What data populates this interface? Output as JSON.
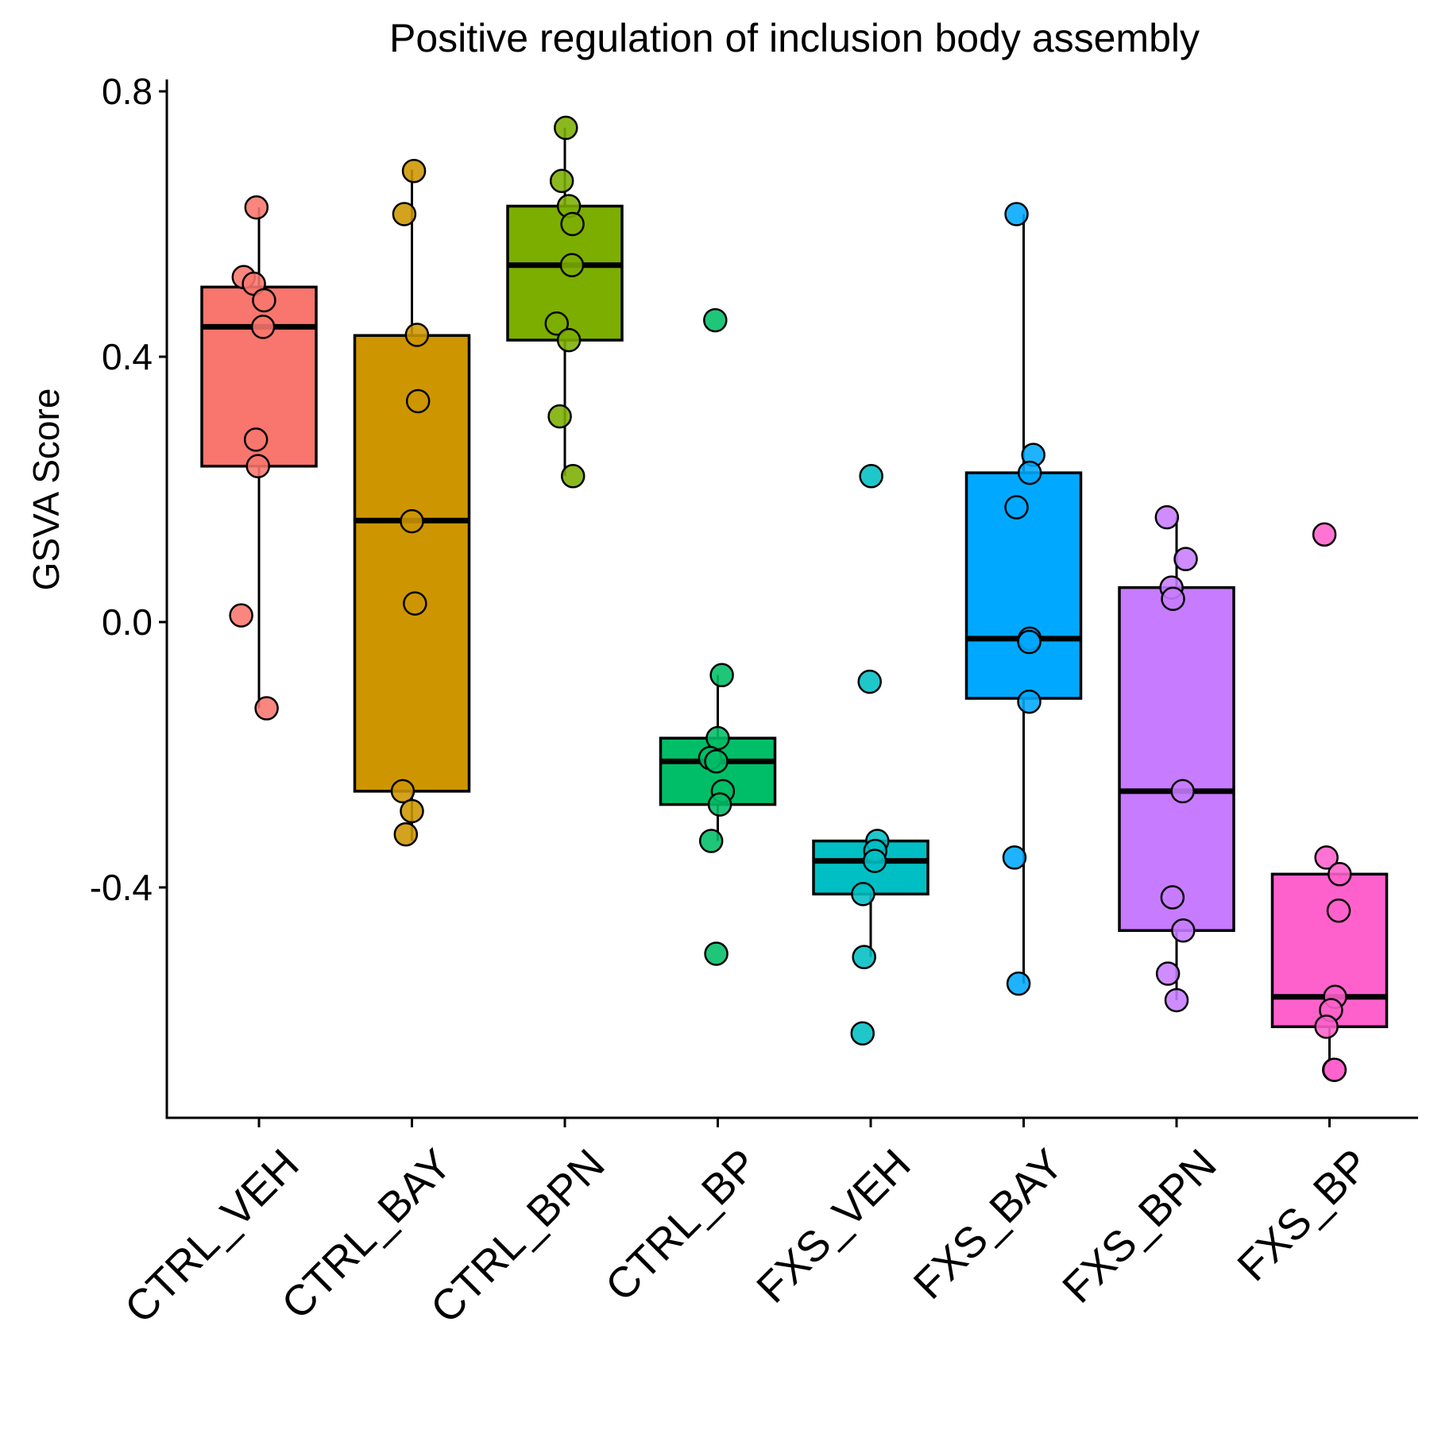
{
  "chart_data": {
    "type": "box",
    "title": "Positive regulation of inclusion body assembly",
    "xlabel": "",
    "ylabel": "GSVA Score",
    "ylim": [
      -0.75,
      0.82
    ],
    "yticks": [
      0.8,
      0.4,
      0.0,
      -0.4
    ],
    "ytick_labels": [
      "0.8",
      "0.4",
      "0.0",
      "-0.4"
    ],
    "grid": false,
    "legend": "none",
    "categories": [
      "CTRL_VEH",
      "CTRL_BAY",
      "CTRL_BPN",
      "CTRL_BP",
      "FXS_VEH",
      "FXS_BAY",
      "FXS_BPN",
      "FXS_BP"
    ],
    "colors": [
      "#F8766D",
      "#CD9600",
      "#7CAE00",
      "#00BE67",
      "#00BFC4",
      "#00A9FF",
      "#C77CFF",
      "#FF61CC"
    ],
    "boxes": [
      {
        "name": "CTRL_VEH",
        "lower_whisker": -0.13,
        "q1": 0.235,
        "median": 0.445,
        "q3": 0.505,
        "upper_whisker": 0.625
      },
      {
        "name": "CTRL_BAY",
        "lower_whisker": -0.33,
        "q1": -0.255,
        "median": 0.153,
        "q3": 0.432,
        "upper_whisker": 0.682
      },
      {
        "name": "CTRL_BPN",
        "lower_whisker": 0.22,
        "q1": 0.425,
        "median": 0.538,
        "q3": 0.627,
        "upper_whisker": 0.745
      },
      {
        "name": "CTRL_BP",
        "lower_whisker": -0.33,
        "q1": -0.275,
        "median": -0.21,
        "q3": -0.175,
        "upper_whisker": -0.08
      },
      {
        "name": "FXS_VEH",
        "lower_whisker": -0.505,
        "q1": -0.41,
        "median": -0.36,
        "q3": -0.33,
        "upper_whisker": -0.33
      },
      {
        "name": "FXS_BAY",
        "lower_whisker": -0.545,
        "q1": -0.115,
        "median": -0.025,
        "q3": 0.225,
        "upper_whisker": 0.615
      },
      {
        "name": "FXS_BPN",
        "lower_whisker": -0.57,
        "q1": -0.465,
        "median": -0.255,
        "q3": 0.052,
        "upper_whisker": 0.158
      },
      {
        "name": "FXS_BP",
        "lower_whisker": -0.675,
        "q1": -0.61,
        "median": -0.565,
        "q3": -0.38,
        "upper_whisker": -0.38
      }
    ],
    "points": [
      [
        [
          -0.005,
          0.625
        ],
        [
          -0.03,
          0.52
        ],
        [
          -0.01,
          0.51
        ],
        [
          0.01,
          0.485
        ],
        [
          0.008,
          0.445
        ],
        [
          -0.006,
          0.275
        ],
        [
          -0.002,
          0.235
        ],
        [
          -0.035,
          0.01
        ],
        [
          0.015,
          -0.13
        ]
      ],
      [
        [
          -0.015,
          0.615
        ],
        [
          0.004,
          0.68
        ],
        [
          0.01,
          0.433
        ],
        [
          0.012,
          0.333
        ],
        [
          0.0,
          0.152
        ],
        [
          0.006,
          0.028
        ],
        [
          -0.018,
          -0.255
        ],
        [
          0.0,
          -0.285
        ],
        [
          -0.012,
          -0.32
        ]
      ],
      [
        [
          0.002,
          0.745
        ],
        [
          -0.006,
          0.665
        ],
        [
          0.008,
          0.627
        ],
        [
          0.015,
          0.6
        ],
        [
          0.014,
          0.538
        ],
        [
          -0.016,
          0.45
        ],
        [
          0.008,
          0.425
        ],
        [
          -0.01,
          0.31
        ],
        [
          0.016,
          0.22
        ]
      ],
      [
        [
          -0.005,
          0.455
        ],
        [
          0.008,
          -0.08
        ],
        [
          0.0,
          -0.175
        ],
        [
          -0.015,
          -0.205
        ],
        [
          -0.003,
          -0.21
        ],
        [
          0.01,
          -0.255
        ],
        [
          0.004,
          -0.275
        ],
        [
          -0.013,
          -0.33
        ],
        [
          -0.003,
          -0.5
        ]
      ],
      [
        [
          0.001,
          0.22
        ],
        [
          -0.002,
          -0.09
        ],
        [
          0.013,
          -0.33
        ],
        [
          0.009,
          -0.345
        ],
        [
          0.008,
          -0.36
        ],
        [
          -0.015,
          -0.41
        ],
        [
          -0.013,
          -0.505
        ],
        [
          -0.016,
          -0.62
        ]
      ],
      [
        [
          -0.014,
          0.615
        ],
        [
          0.019,
          0.252
        ],
        [
          0.012,
          0.225
        ],
        [
          -0.014,
          0.173
        ],
        [
          0.012,
          -0.025
        ],
        [
          0.011,
          -0.03
        ],
        [
          0.011,
          -0.12
        ],
        [
          -0.018,
          -0.355
        ],
        [
          -0.01,
          -0.545
        ]
      ],
      [
        [
          -0.019,
          0.158
        ],
        [
          0.018,
          0.095
        ],
        [
          -0.01,
          0.052
        ],
        [
          -0.007,
          0.035
        ],
        [
          0.012,
          -0.255
        ],
        [
          -0.008,
          -0.415
        ],
        [
          0.013,
          -0.465
        ],
        [
          -0.017,
          -0.53
        ],
        [
          0.0,
          -0.57
        ]
      ],
      [
        [
          -0.01,
          0.132
        ],
        [
          -0.006,
          -0.355
        ],
        [
          0.02,
          -0.38
        ],
        [
          0.018,
          -0.435
        ],
        [
          0.011,
          -0.565
        ],
        [
          0.003,
          -0.585
        ],
        [
          -0.006,
          -0.61
        ],
        [
          0.009,
          -0.675
        ],
        [
          0.01,
          -0.675
        ]
      ]
    ]
  }
}
